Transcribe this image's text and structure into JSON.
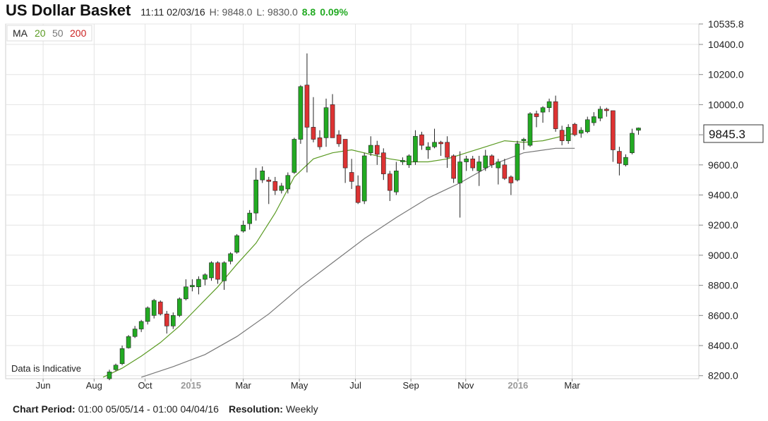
{
  "header": {
    "title": "US Dollar Basket",
    "datetime": "11:11 02/03/16",
    "high": "H: 9848.0",
    "low": "L: 9830.0",
    "change": "8.8",
    "change_pct": "0.09%"
  },
  "legend": {
    "ma_label": "MA",
    "ma_periods": [
      "20",
      "50",
      "200"
    ]
  },
  "note": "Data is Indicative",
  "last_price_label": "9845.3",
  "footer": {
    "period_label": "Chart Period:",
    "period_value": "01:00 05/05/14 - 01:00 04/04/16",
    "resolution_label": "Resolution:",
    "resolution_value": "Weekly"
  },
  "colors": {
    "up": "#22aa22",
    "down": "#dd3333",
    "ma20": "#5a9a22",
    "ma50": "#777777",
    "ma200": "#cc2222",
    "change": "#22aa22",
    "grid": "#e4e4e4"
  },
  "chart_data": {
    "type": "candlestick",
    "title": "US Dollar Basket",
    "resolution": "Weekly",
    "ylim": [
      8180,
      10535.8
    ],
    "y_ticks": [
      8200.0,
      8400.0,
      8600.0,
      8800.0,
      9000.0,
      9200.0,
      9400.0,
      9600.0,
      9800.0,
      10000.0,
      10200.0,
      10400.0,
      10535.8
    ],
    "y_tick_labels": [
      "8200.0",
      "8400.0",
      "8600.0",
      "8800.0",
      "9000.0",
      "9200.0",
      "9400.0",
      "9600.0",
      "9800.0",
      "10000.0",
      "10200.0",
      "10400.0",
      "10535.8"
    ],
    "x_tick_labels": [
      "Jun",
      "Aug",
      "Oct",
      "2015",
      "Mar",
      "May",
      "Jul",
      "Sep",
      "Nov",
      "2016",
      "Mar"
    ],
    "x_tick_weeks": [
      -10.4,
      -2.4,
      5.6,
      12.8,
      21.0,
      29.8,
      38.6,
      47.3,
      55.9,
      64.1,
      72.6
    ],
    "grid": true,
    "last_price": 9845.3,
    "candles": [
      {
        "o": 8180,
        "h": 8240,
        "l": 8170,
        "c": 8225
      },
      {
        "o": 8240,
        "h": 8280,
        "l": 8230,
        "c": 8270
      },
      {
        "o": 8280,
        "h": 8400,
        "l": 8270,
        "c": 8380
      },
      {
        "o": 8385,
        "h": 8470,
        "l": 8380,
        "c": 8460
      },
      {
        "o": 8460,
        "h": 8530,
        "l": 8450,
        "c": 8510
      },
      {
        "o": 8510,
        "h": 8570,
        "l": 8490,
        "c": 8560
      },
      {
        "o": 8560,
        "h": 8660,
        "l": 8540,
        "c": 8650
      },
      {
        "o": 8600,
        "h": 8710,
        "l": 8580,
        "c": 8700
      },
      {
        "o": 8690,
        "h": 8700,
        "l": 8600,
        "c": 8610
      },
      {
        "o": 8610,
        "h": 8630,
        "l": 8480,
        "c": 8530
      },
      {
        "o": 8530,
        "h": 8620,
        "l": 8510,
        "c": 8600
      },
      {
        "o": 8600,
        "h": 8720,
        "l": 8590,
        "c": 8710
      },
      {
        "o": 8710,
        "h": 8840,
        "l": 8700,
        "c": 8790
      },
      {
        "o": 8790,
        "h": 8840,
        "l": 8760,
        "c": 8800
      },
      {
        "o": 8790,
        "h": 8860,
        "l": 8740,
        "c": 8840
      },
      {
        "o": 8840,
        "h": 8880,
        "l": 8800,
        "c": 8870
      },
      {
        "o": 8850,
        "h": 8960,
        "l": 8830,
        "c": 8950
      },
      {
        "o": 8950,
        "h": 8960,
        "l": 8810,
        "c": 8840
      },
      {
        "o": 8830,
        "h": 8960,
        "l": 8770,
        "c": 8950
      },
      {
        "o": 8960,
        "h": 9020,
        "l": 8940,
        "c": 9010
      },
      {
        "o": 9020,
        "h": 9140,
        "l": 9010,
        "c": 9130
      },
      {
        "o": 9160,
        "h": 9230,
        "l": 9150,
        "c": 9200
      },
      {
        "o": 9210,
        "h": 9300,
        "l": 9170,
        "c": 9280
      },
      {
        "o": 9280,
        "h": 9580,
        "l": 9230,
        "c": 9500
      },
      {
        "o": 9500,
        "h": 9590,
        "l": 9480,
        "c": 9560
      },
      {
        "o": 9500,
        "h": 9520,
        "l": 9340,
        "c": 9490
      },
      {
        "o": 9490,
        "h": 9520,
        "l": 9400,
        "c": 9430
      },
      {
        "o": 9430,
        "h": 9480,
        "l": 9410,
        "c": 9460
      },
      {
        "o": 9440,
        "h": 9550,
        "l": 9410,
        "c": 9530
      },
      {
        "o": 9550,
        "h": 9780,
        "l": 9540,
        "c": 9770
      },
      {
        "o": 9770,
        "h": 10130,
        "l": 9740,
        "c": 10120
      },
      {
        "o": 10130,
        "h": 10340,
        "l": 9550,
        "c": 9850
      },
      {
        "o": 9850,
        "h": 10050,
        "l": 9750,
        "c": 9770
      },
      {
        "o": 9780,
        "h": 9830,
        "l": 9700,
        "c": 9720
      },
      {
        "o": 9780,
        "h": 10040,
        "l": 9720,
        "c": 9980
      },
      {
        "o": 10000,
        "h": 10070,
        "l": 9780,
        "c": 9780
      },
      {
        "o": 9800,
        "h": 9830,
        "l": 9720,
        "c": 9740
      },
      {
        "o": 9770,
        "h": 9770,
        "l": 9480,
        "c": 9580
      },
      {
        "o": 9550,
        "h": 9640,
        "l": 9440,
        "c": 9490
      },
      {
        "o": 9460,
        "h": 9530,
        "l": 9340,
        "c": 9350
      },
      {
        "o": 9360,
        "h": 9680,
        "l": 9340,
        "c": 9660
      },
      {
        "o": 9680,
        "h": 9790,
        "l": 9660,
        "c": 9730
      },
      {
        "o": 9730,
        "h": 9760,
        "l": 9600,
        "c": 9670
      },
      {
        "o": 9680,
        "h": 9710,
        "l": 9500,
        "c": 9540
      },
      {
        "o": 9540,
        "h": 9560,
        "l": 9360,
        "c": 9430
      },
      {
        "o": 9420,
        "h": 9620,
        "l": 9400,
        "c": 9560
      },
      {
        "o": 9620,
        "h": 9650,
        "l": 9600,
        "c": 9630
      },
      {
        "o": 9600,
        "h": 9670,
        "l": 9580,
        "c": 9660
      },
      {
        "o": 9620,
        "h": 9830,
        "l": 9600,
        "c": 9790
      },
      {
        "o": 9800,
        "h": 9820,
        "l": 9700,
        "c": 9730
      },
      {
        "o": 9700,
        "h": 9750,
        "l": 9640,
        "c": 9720
      },
      {
        "o": 9720,
        "h": 9840,
        "l": 9710,
        "c": 9750
      },
      {
        "o": 9750,
        "h": 9760,
        "l": 9660,
        "c": 9740
      },
      {
        "o": 9750,
        "h": 9790,
        "l": 9580,
        "c": 9650
      },
      {
        "o": 9660,
        "h": 9670,
        "l": 9480,
        "c": 9510
      },
      {
        "o": 9480,
        "h": 9690,
        "l": 9250,
        "c": 9620
      },
      {
        "o": 9620,
        "h": 9660,
        "l": 9560,
        "c": 9640
      },
      {
        "o": 9640,
        "h": 9660,
        "l": 9560,
        "c": 9580
      },
      {
        "o": 9560,
        "h": 9660,
        "l": 9460,
        "c": 9620
      },
      {
        "o": 9580,
        "h": 9700,
        "l": 9560,
        "c": 9660
      },
      {
        "o": 9660,
        "h": 9670,
        "l": 9580,
        "c": 9600
      },
      {
        "o": 9580,
        "h": 9640,
        "l": 9470,
        "c": 9620
      },
      {
        "o": 9600,
        "h": 9640,
        "l": 9500,
        "c": 9510
      },
      {
        "o": 9520,
        "h": 9530,
        "l": 9400,
        "c": 9480
      },
      {
        "o": 9500,
        "h": 9760,
        "l": 9490,
        "c": 9740
      },
      {
        "o": 9760,
        "h": 9780,
        "l": 9700,
        "c": 9770
      },
      {
        "o": 9730,
        "h": 9950,
        "l": 9720,
        "c": 9940
      },
      {
        "o": 9940,
        "h": 9960,
        "l": 9850,
        "c": 9920
      },
      {
        "o": 9950,
        "h": 9990,
        "l": 9880,
        "c": 9980
      },
      {
        "o": 9980,
        "h": 10040,
        "l": 9950,
        "c": 10020
      },
      {
        "o": 10020,
        "h": 10060,
        "l": 9820,
        "c": 9840
      },
      {
        "o": 9830,
        "h": 9860,
        "l": 9730,
        "c": 9760
      },
      {
        "o": 9760,
        "h": 9870,
        "l": 9740,
        "c": 9850
      },
      {
        "o": 9870,
        "h": 9880,
        "l": 9790,
        "c": 9800
      },
      {
        "o": 9810,
        "h": 9850,
        "l": 9780,
        "c": 9830
      },
      {
        "o": 9820,
        "h": 9920,
        "l": 9810,
        "c": 9900
      },
      {
        "o": 9880,
        "h": 9950,
        "l": 9860,
        "c": 9920
      },
      {
        "o": 9910,
        "h": 9990,
        "l": 9890,
        "c": 9970
      },
      {
        "o": 9970,
        "h": 9980,
        "l": 9920,
        "c": 9960
      },
      {
        "o": 9960,
        "h": 9960,
        "l": 9620,
        "c": 9700
      },
      {
        "o": 9690,
        "h": 9720,
        "l": 9530,
        "c": 9610
      },
      {
        "o": 9600,
        "h": 9670,
        "l": 9590,
        "c": 9650
      },
      {
        "o": 9680,
        "h": 9840,
        "l": 9670,
        "c": 9810
      },
      {
        "o": 9830,
        "h": 9848,
        "l": 9800,
        "c": 9845
      }
    ],
    "series": [
      {
        "name": "20",
        "x": [
          -1,
          2,
          5,
          8,
          11,
          14,
          17,
          20,
          23,
          26,
          29,
          32,
          35,
          38,
          41,
          44,
          47,
          50,
          53,
          56,
          59,
          62,
          65,
          68,
          71,
          73
        ],
        "values": [
          8190,
          8250,
          8330,
          8420,
          8530,
          8660,
          8790,
          8940,
          9080,
          9280,
          9520,
          9640,
          9680,
          9700,
          9670,
          9640,
          9620,
          9620,
          9640,
          9680,
          9720,
          9760,
          9750,
          9760,
          9790,
          9810
        ]
      },
      {
        "name": "50",
        "x": [
          5,
          10,
          15,
          20,
          25,
          30,
          35,
          40,
          45,
          50,
          55,
          60,
          65,
          70,
          73
        ],
        "values": [
          8190,
          8260,
          8340,
          8460,
          8610,
          8790,
          8950,
          9110,
          9250,
          9380,
          9480,
          9600,
          9680,
          9710,
          9710
        ]
      }
    ]
  }
}
